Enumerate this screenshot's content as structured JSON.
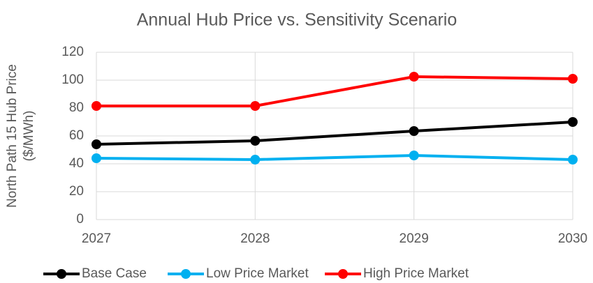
{
  "chart_data": {
    "type": "line",
    "title": "Annual Hub Price vs. Sensitivity Scenario",
    "ylabel": [
      "North Path 15 Hub Price",
      "($/MWh)"
    ],
    "x": [
      2027,
      2028,
      2029,
      2030
    ],
    "xlim": [
      2027,
      2030
    ],
    "xticks": [
      2027,
      2028,
      2029,
      2030
    ],
    "ylim": [
      0,
      120
    ],
    "yticks": [
      0,
      20,
      40,
      60,
      80,
      100,
      120
    ],
    "grid": true,
    "legend": "bottom",
    "series": [
      {
        "name": "Base Case",
        "color": "#000000",
        "values": [
          54,
          56.5,
          63.5,
          70
        ]
      },
      {
        "name": "Low Price Market",
        "color": "#00b0f0",
        "values": [
          44,
          43,
          46,
          43
        ]
      },
      {
        "name": "High Price Market",
        "color": "#ff0000",
        "values": [
          81.5,
          81.5,
          102.5,
          101
        ]
      }
    ]
  }
}
